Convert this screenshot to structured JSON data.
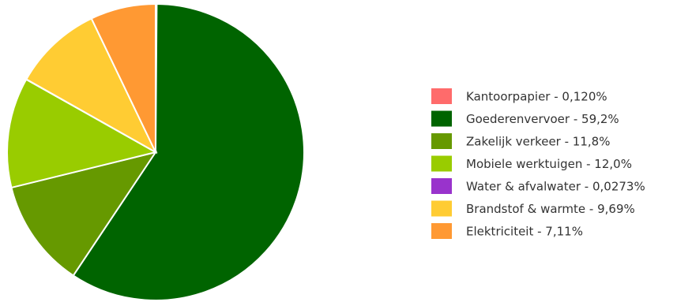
{
  "chart_data": {
    "type": "pie",
    "categories": [
      "Kantoorpapier - 0,120%",
      "Goederenvervoer - 59,2%",
      "Zakelijk verkeer - 11,8%",
      "Mobiele werktuigen - 12,0%",
      "Water & afvalwater - 0,0273%",
      "Brandstof & warmte - 9,69%",
      "Elektriciteit - 7,11%"
    ],
    "values": [
      0.12,
      59.2,
      11.8,
      12.0,
      0.0273,
      9.69,
      7.11
    ],
    "colors": [
      "#ff6b6b",
      "#006400",
      "#669900",
      "#99cc00",
      "#9933cc",
      "#ffcc33",
      "#ff9933"
    ],
    "legend": "right"
  }
}
